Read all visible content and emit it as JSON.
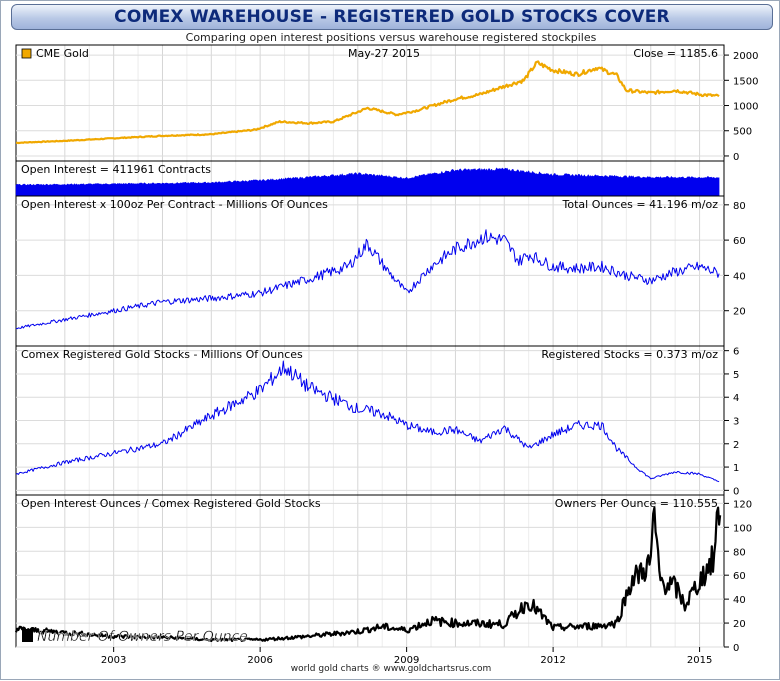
{
  "page": {
    "title": "COMEX WAREHOUSE - REGISTERED GOLD STOCKS COVER",
    "subtitle": "Comparing open interest positions versus warehouse registered stockpiles",
    "credit": "world gold charts ® www.goldchartsrus.com"
  },
  "chart_data": [
    {
      "type": "line",
      "legend": "CME Gold",
      "date_label": "May-27  2015",
      "right_label": "Close = 1185.6",
      "color": "#f0a800",
      "yticks": [
        0,
        500,
        1000,
        1500,
        2000
      ],
      "ylim": [
        -100,
        2200
      ],
      "x": [
        2001.0,
        2002.0,
        2003.0,
        2004.0,
        2005.0,
        2005.9,
        2006.4,
        2007.0,
        2007.5,
        2008.2,
        2008.8,
        2009.2,
        2010.0,
        2010.5,
        2011.0,
        2011.4,
        2011.67,
        2012.0,
        2012.5,
        2012.9,
        2013.3,
        2013.5,
        2014.0,
        2014.5,
        2015.0,
        2015.4
      ],
      "values": [
        260,
        300,
        350,
        400,
        430,
        520,
        680,
        650,
        680,
        950,
        820,
        900,
        1130,
        1220,
        1380,
        1500,
        1850,
        1700,
        1620,
        1750,
        1600,
        1300,
        1250,
        1300,
        1220,
        1186
      ]
    },
    {
      "type": "area",
      "legend": "Open Interest = 411961 Contracts",
      "color": "#0000ee",
      "x": [
        2001.0,
        2003.0,
        2005.0,
        2006.0,
        2007.0,
        2008.0,
        2009.0,
        2010.0,
        2011.0,
        2012.0,
        2013.0,
        2014.0,
        2015.4
      ],
      "values": [
        250000,
        270000,
        300000,
        350000,
        420000,
        500000,
        400000,
        580000,
        600000,
        480000,
        450000,
        420000,
        412000
      ]
    },
    {
      "type": "line",
      "legend": "Open Interest x 100oz Per Contract - Millions Of Ounces",
      "right_label": "Total Ounces = 41.196 m/oz",
      "color": "#0000ee",
      "yticks": [
        20,
        40,
        60,
        80
      ],
      "ylim": [
        0,
        85
      ],
      "x": [
        2001.0,
        2002.0,
        2003.0,
        2004.0,
        2005.0,
        2006.0,
        2007.0,
        2007.8,
        2008.2,
        2008.6,
        2009.0,
        2009.5,
        2010.0,
        2010.6,
        2011.0,
        2011.3,
        2011.5,
        2012.0,
        2012.5,
        2013.0,
        2013.5,
        2014.0,
        2014.5,
        2015.0,
        2015.4
      ],
      "values": [
        10,
        15,
        20,
        25,
        27,
        30,
        38,
        45,
        58,
        43,
        30,
        45,
        55,
        62,
        60,
        48,
        52,
        45,
        44,
        45,
        40,
        37,
        42,
        45,
        41
      ]
    },
    {
      "type": "line",
      "legend": "Comex Registered Gold Stocks - Millions Of Ounces",
      "right_label": "Registered Stocks = 0.373 m/oz",
      "color": "#0000ee",
      "yticks": [
        0,
        1,
        2,
        3,
        4,
        5,
        6
      ],
      "ylim": [
        -0.2,
        6.2
      ],
      "x": [
        2001.0,
        2002.0,
        2003.0,
        2004.0,
        2005.0,
        2006.0,
        2006.5,
        2007.0,
        2008.0,
        2008.5,
        2009.0,
        2009.5,
        2010.0,
        2010.5,
        2011.0,
        2011.5,
        2012.0,
        2012.5,
        2013.0,
        2013.3,
        2013.7,
        2014.0,
        2014.5,
        2015.0,
        2015.4
      ],
      "values": [
        0.7,
        1.2,
        1.6,
        2.0,
        3.2,
        4.3,
        5.3,
        4.4,
        3.5,
        3.3,
        2.8,
        2.5,
        2.6,
        2.1,
        2.7,
        1.8,
        2.4,
        2.8,
        2.8,
        1.8,
        1.0,
        0.5,
        0.8,
        0.7,
        0.37
      ]
    },
    {
      "type": "line",
      "legend": "Open Interest Ounces / Comex Registered Gold Stocks",
      "right_label": "Owners Per Ounce = 110.555",
      "annotation": "Number Of Owners Per Ounce",
      "color": "#000000",
      "yticks": [
        0,
        20,
        40,
        60,
        80,
        100,
        120
      ],
      "ylim": [
        0,
        127
      ],
      "x": [
        2001.0,
        2002.0,
        2003.0,
        2004.0,
        2005.0,
        2006.0,
        2007.0,
        2008.0,
        2008.5,
        2009.0,
        2009.5,
        2010.0,
        2011.0,
        2011.5,
        2012.0,
        2012.5,
        2013.0,
        2013.3,
        2013.6,
        2014.0,
        2014.05,
        2014.2,
        2014.5,
        2014.7,
        2015.0,
        2015.3,
        2015.38,
        2015.42
      ],
      "values": [
        15,
        12,
        9,
        8,
        6,
        6,
        9,
        13,
        17,
        14,
        22,
        20,
        19,
        38,
        16,
        17,
        18,
        20,
        55,
        70,
        110,
        55,
        50,
        35,
        55,
        75,
        115,
        110
      ]
    }
  ],
  "x_axis": {
    "ticks": [
      2003,
      2006,
      2009,
      2012,
      2015
    ],
    "range": [
      2001.0,
      2015.5
    ]
  }
}
